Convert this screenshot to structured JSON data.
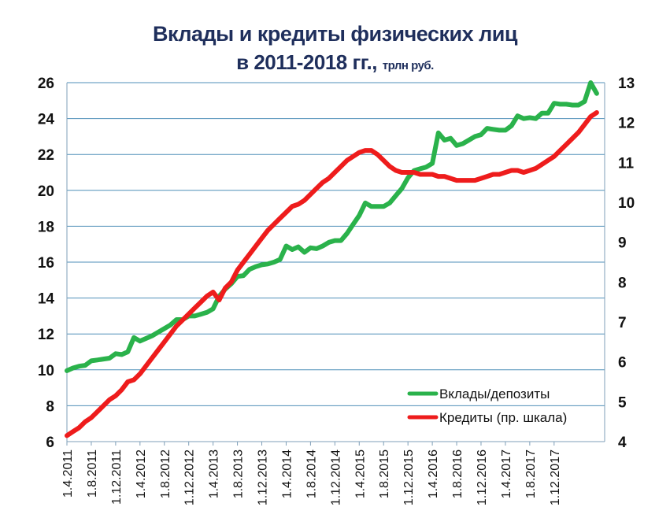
{
  "chart_data": {
    "type": "line",
    "title_line1": "Вклады и кредиты физических лиц",
    "title_line2": "в 2011-2018 гг.,",
    "title_unit": "трлн руб.",
    "x_ticks": [
      "1.4.2011",
      "1.8.2011",
      "1.12.2011",
      "1.4.2012",
      "1.8.2012",
      "1.12.2012",
      "1.4.2013",
      "1.8.2013",
      "1.12.2013",
      "1.4.2014",
      "1.8.2014",
      "1.12.2014",
      "1.4.2015",
      "1.8.2015",
      "1.12.2015",
      "1.4.2016",
      "1.8.2016",
      "1.12.2016",
      "1.4.2017",
      "1.8.2017",
      "1.12.2017"
    ],
    "x_start": "2011-04",
    "left_axis": {
      "min": 6,
      "max": 26,
      "step": 2
    },
    "right_axis": {
      "min": 4,
      "max": 13,
      "step": 1
    },
    "grid": "horizontal",
    "legend_position": "bottom-right",
    "series": [
      {
        "name": "Вклады/депозиты",
        "color": "#2ab24b",
        "axis": "left",
        "values": [
          9.95,
          10.1,
          10.2,
          10.25,
          10.5,
          10.55,
          10.6,
          10.65,
          10.9,
          10.85,
          11.0,
          11.8,
          11.6,
          11.75,
          11.9,
          12.1,
          12.3,
          12.5,
          12.8,
          12.8,
          13.0,
          13.0,
          13.1,
          13.2,
          13.4,
          14.1,
          14.5,
          14.8,
          15.2,
          15.25,
          15.6,
          15.75,
          15.85,
          15.9,
          16.0,
          16.15,
          16.9,
          16.7,
          16.85,
          16.55,
          16.8,
          16.75,
          16.9,
          17.1,
          17.2,
          17.2,
          17.6,
          18.1,
          18.6,
          19.3,
          19.1,
          19.1,
          19.1,
          19.3,
          19.7,
          20.1,
          20.7,
          21.1,
          21.2,
          21.3,
          21.5,
          23.2,
          22.8,
          22.9,
          22.5,
          22.6,
          22.8,
          23.0,
          23.1,
          23.45,
          23.4,
          23.35,
          23.35,
          23.6,
          24.15,
          24.0,
          24.05,
          24.0,
          24.3,
          24.3,
          24.85,
          24.8,
          24.8,
          24.75,
          24.75,
          24.95,
          26.0,
          25.4
        ]
      },
      {
        "name": "Кредиты (пр. шкала)",
        "color": "#ee1c1c",
        "axis": "right",
        "values": [
          4.15,
          4.25,
          4.35,
          4.5,
          4.6,
          4.75,
          4.9,
          5.05,
          5.15,
          5.3,
          5.5,
          5.55,
          5.7,
          5.9,
          6.1,
          6.3,
          6.5,
          6.7,
          6.9,
          7.05,
          7.2,
          7.35,
          7.5,
          7.65,
          7.75,
          7.55,
          7.85,
          8.0,
          8.3,
          8.5,
          8.7,
          8.9,
          9.1,
          9.3,
          9.45,
          9.6,
          9.75,
          9.9,
          9.95,
          10.05,
          10.2,
          10.35,
          10.5,
          10.6,
          10.75,
          10.9,
          11.05,
          11.15,
          11.25,
          11.3,
          11.3,
          11.2,
          11.05,
          10.9,
          10.8,
          10.75,
          10.75,
          10.75,
          10.7,
          10.7,
          10.7,
          10.65,
          10.65,
          10.6,
          10.55,
          10.55,
          10.55,
          10.55,
          10.6,
          10.65,
          10.7,
          10.7,
          10.75,
          10.8,
          10.8,
          10.75,
          10.8,
          10.85,
          10.95,
          11.05,
          11.15,
          11.3,
          11.45,
          11.6,
          11.75,
          11.95,
          12.15,
          12.25
        ]
      }
    ]
  }
}
